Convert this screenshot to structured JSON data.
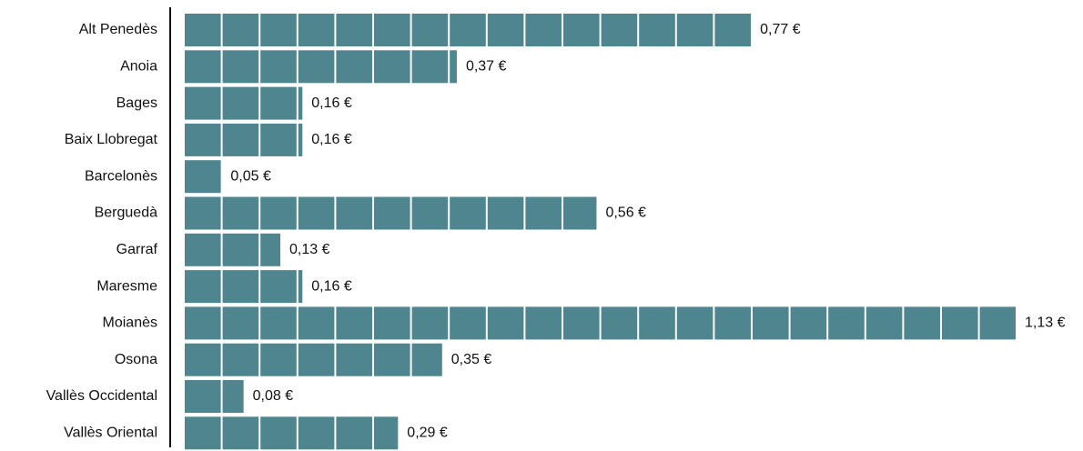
{
  "chart_data": {
    "type": "bar",
    "orientation": "horizontal",
    "categories": [
      "Alt Penedès",
      "Anoia",
      "Bages",
      "Baix Llobregat",
      "Barcelonès",
      "Berguedà",
      "Garraf",
      "Maresme",
      "Moianès",
      "Osona",
      "Vallès Occidental",
      "Vallès Oriental"
    ],
    "values": [
      0.77,
      0.37,
      0.16,
      0.16,
      0.05,
      0.56,
      0.13,
      0.16,
      1.13,
      0.35,
      0.08,
      0.29
    ],
    "value_labels": [
      "0,77 €",
      "0,37 €",
      "0,16 €",
      "0,16 €",
      "0,05 €",
      "0,56 €",
      "0,13 €",
      "0,16 €",
      "1,13 €",
      "0,35 €",
      "0,08 €",
      "0,29 €"
    ],
    "color": "#4e858f"
  }
}
